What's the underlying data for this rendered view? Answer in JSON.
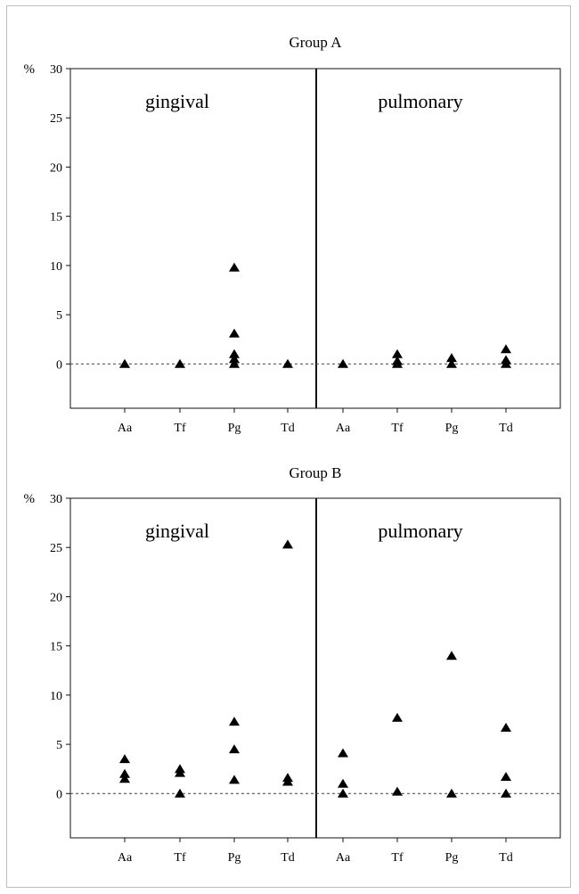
{
  "chart_data": [
    {
      "type": "scatter",
      "title": "Group A",
      "ylabel": "%",
      "ylim": [
        -4.5,
        30
      ],
      "yticks": [
        0,
        5,
        10,
        15,
        20,
        25,
        30
      ],
      "grid": false,
      "regions": [
        "gingival",
        "pulmonary"
      ],
      "categories": [
        "Aa",
        "Tf",
        "Pg",
        "Td",
        "Aa",
        "Tf",
        "Pg",
        "Td"
      ],
      "marker": "triangle",
      "reference_line": {
        "y": 0,
        "style": "dashed"
      },
      "points": [
        {
          "category_index": 0,
          "values": [
            0
          ]
        },
        {
          "category_index": 1,
          "values": [
            0
          ]
        },
        {
          "category_index": 2,
          "values": [
            9.8,
            3.1,
            1.0,
            0.5,
            0
          ]
        },
        {
          "category_index": 3,
          "values": [
            0
          ]
        },
        {
          "category_index": 4,
          "values": [
            0
          ]
        },
        {
          "category_index": 5,
          "values": [
            1.0,
            0.3,
            0
          ]
        },
        {
          "category_index": 6,
          "values": [
            0.6,
            0
          ]
        },
        {
          "category_index": 7,
          "values": [
            1.5,
            0.4,
            0
          ]
        }
      ]
    },
    {
      "type": "scatter",
      "title": "Group B",
      "ylabel": "%",
      "ylim": [
        -4.5,
        30
      ],
      "yticks": [
        0,
        5,
        10,
        15,
        20,
        25,
        30
      ],
      "grid": false,
      "regions": [
        "gingival",
        "pulmonary"
      ],
      "categories": [
        "Aa",
        "Tf",
        "Pg",
        "Td",
        "Aa",
        "Tf",
        "Pg",
        "Td"
      ],
      "marker": "triangle",
      "reference_line": {
        "y": 0,
        "style": "dashed"
      },
      "points": [
        {
          "category_index": 0,
          "values": [
            3.5,
            2.0,
            1.5
          ]
        },
        {
          "category_index": 1,
          "values": [
            2.5,
            2.1,
            0
          ]
        },
        {
          "category_index": 2,
          "values": [
            7.3,
            4.5,
            1.4
          ]
        },
        {
          "category_index": 3,
          "values": [
            25.3,
            1.6,
            1.2
          ]
        },
        {
          "category_index": 4,
          "values": [
            4.1,
            1.0,
            0
          ]
        },
        {
          "category_index": 5,
          "values": [
            7.7,
            0.2
          ]
        },
        {
          "category_index": 6,
          "values": [
            14.0,
            0
          ]
        },
        {
          "category_index": 7,
          "values": [
            6.7,
            1.7,
            0
          ]
        }
      ]
    }
  ]
}
